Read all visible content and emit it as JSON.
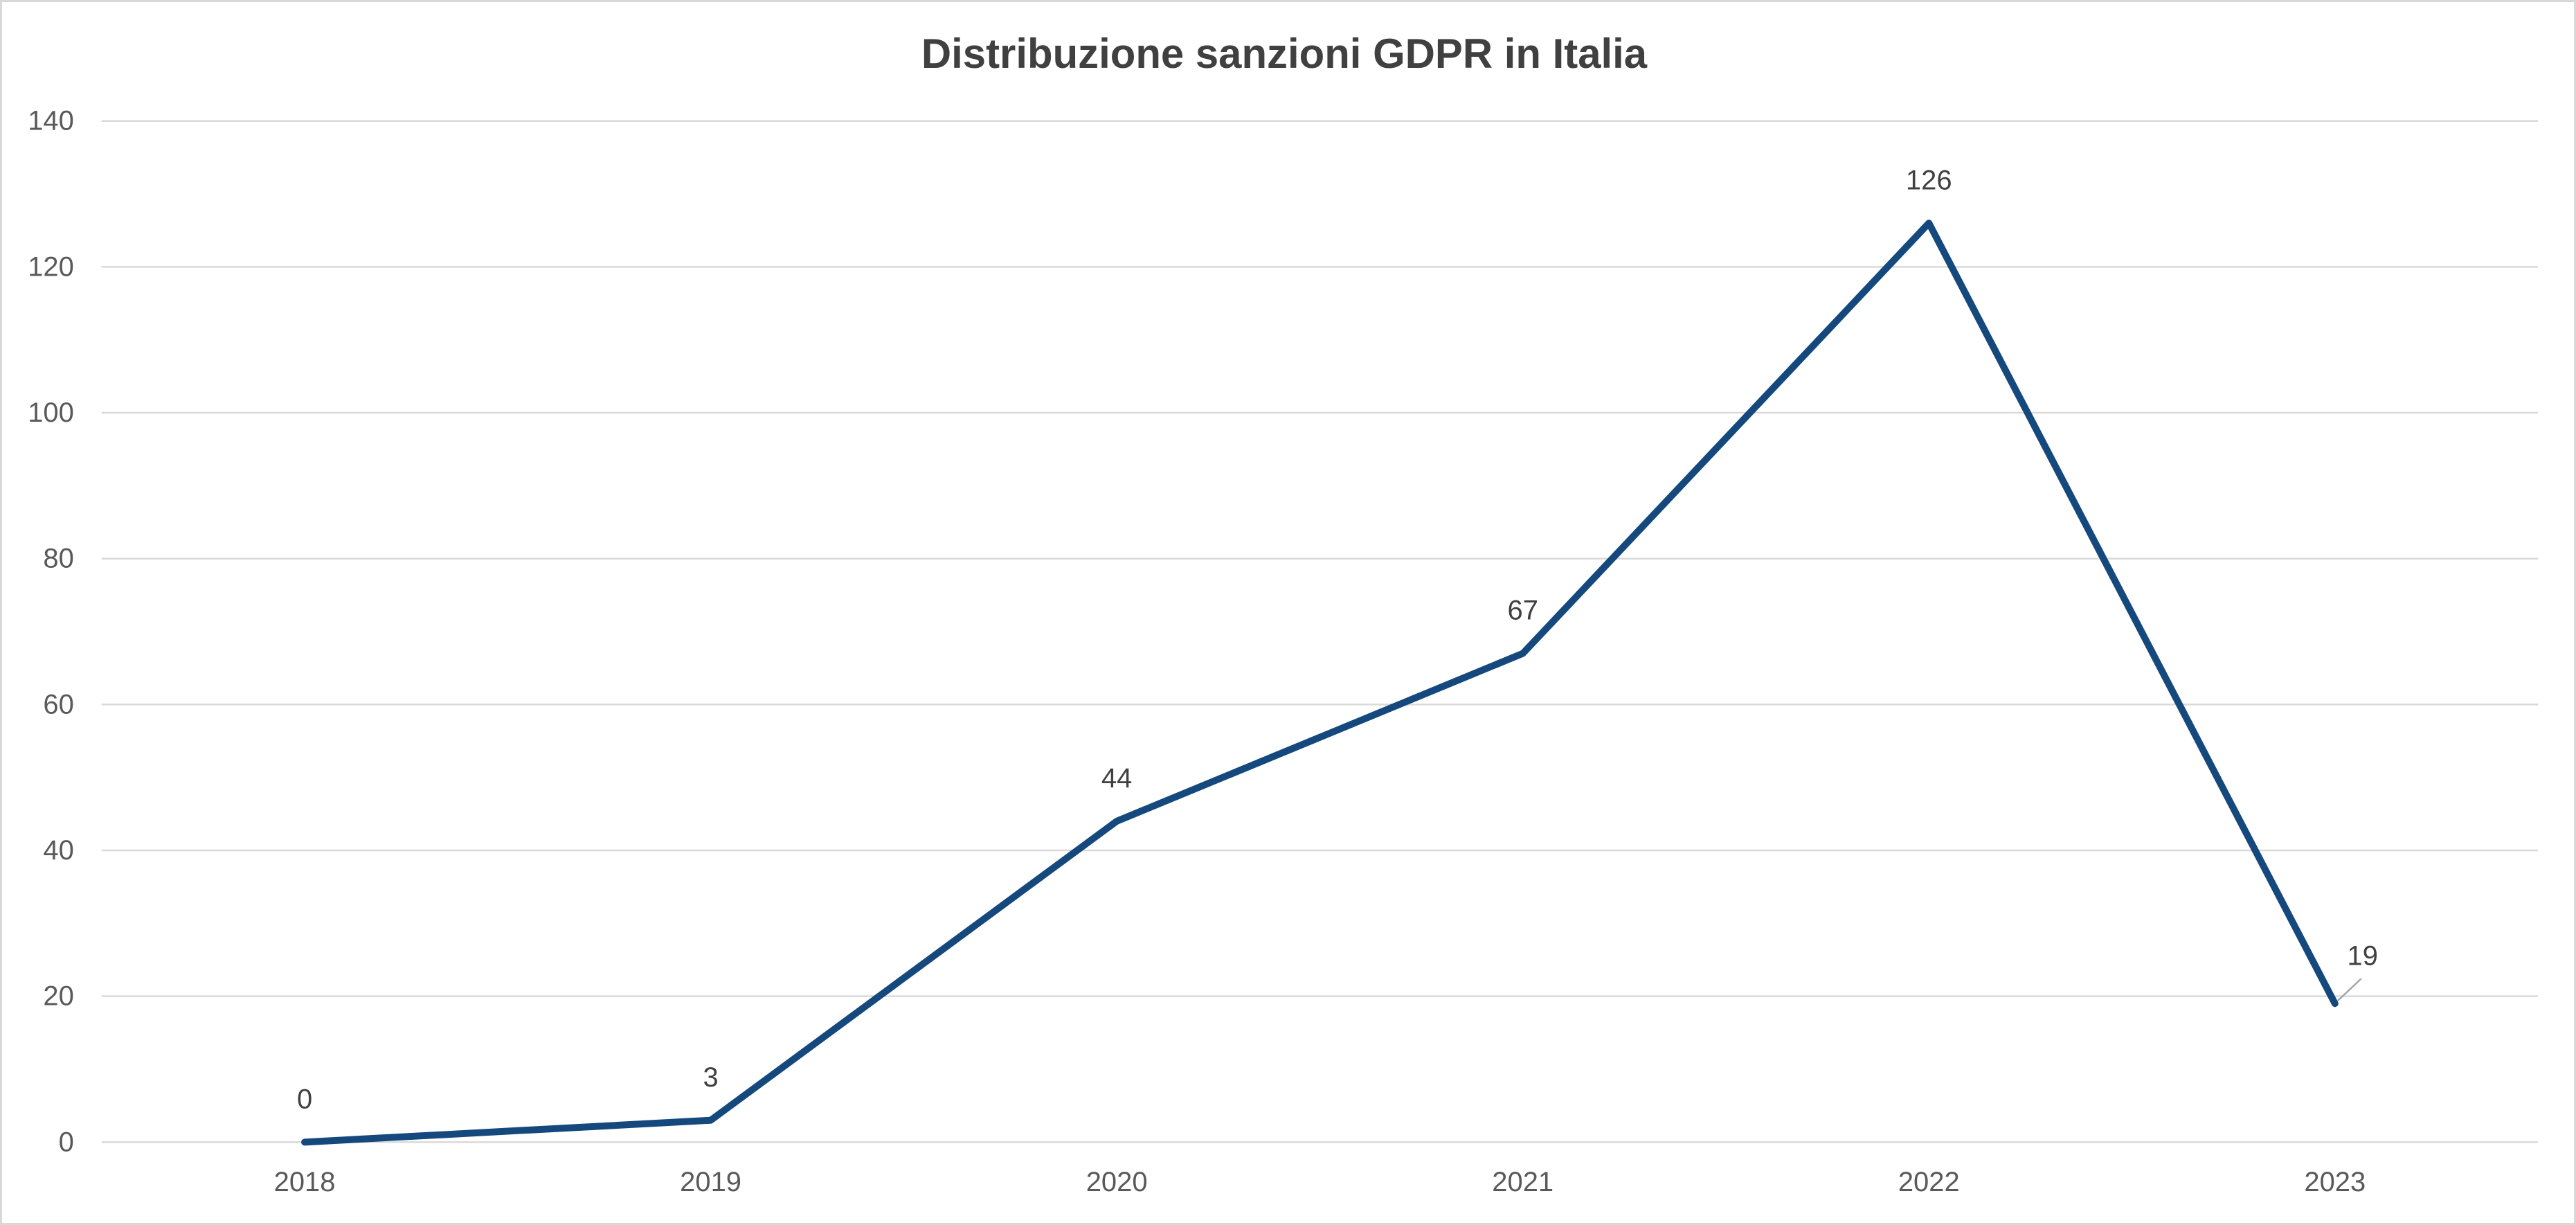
{
  "page": {
    "background": "#FFFFFF",
    "border_color": "#D8D8D8"
  },
  "chart_data": {
    "type": "line",
    "title": "Distribuzione sanzioni GDPR in Italia",
    "categories": [
      "2018",
      "2019",
      "2020",
      "2021",
      "2022",
      "2023"
    ],
    "values": [
      0,
      3,
      44,
      67,
      126,
      19
    ],
    "data_labels": [
      "0",
      "3",
      "44",
      "67",
      "126",
      "19"
    ],
    "xlabel": "",
    "ylabel": "",
    "ylim": [
      0,
      140
    ],
    "ytick_step": 20,
    "ytick_labels": [
      "0",
      "20",
      "40",
      "60",
      "80",
      "100",
      "120",
      "140"
    ],
    "grid": "horizontal-only",
    "legend": "none",
    "colors": {
      "line": "#15497D",
      "gridline": "#D9D9D9",
      "axis_text": "#595959",
      "title_text": "#404040",
      "data_label_text": "#404040",
      "leader_line": "#A6A6A6"
    },
    "label_layout": {
      "default_offset": [
        0,
        -62
      ],
      "overrides": {
        "5": {
          "offset": [
            40,
            -69
          ],
          "leader_end": [
            38,
            -36
          ]
        }
      }
    }
  }
}
